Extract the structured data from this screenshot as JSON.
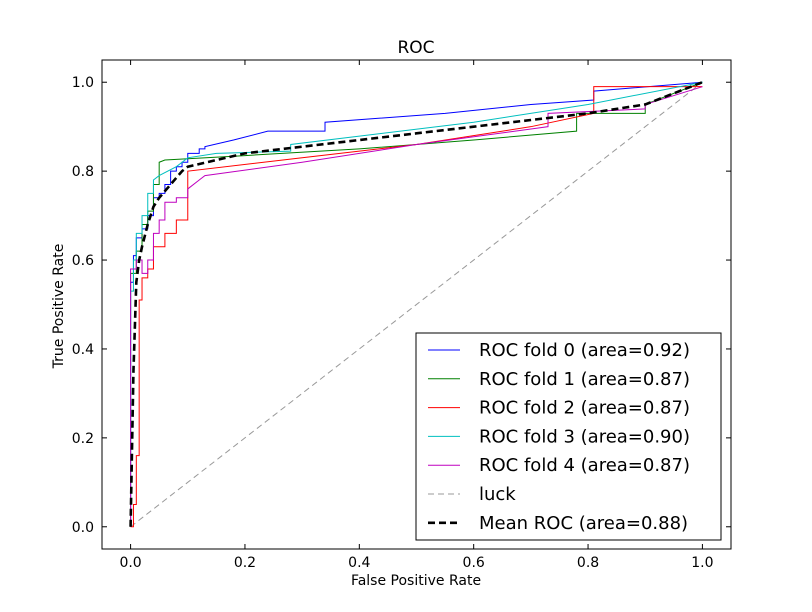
{
  "chart_data": {
    "type": "line",
    "title": "ROC",
    "xlabel": "False Positive Rate",
    "ylabel": "True Positive Rate",
    "xlim": [
      -0.05,
      1.05
    ],
    "ylim": [
      -0.05,
      1.05
    ],
    "xticks": [
      0.0,
      0.2,
      0.4,
      0.6,
      0.8,
      1.0
    ],
    "yticks": [
      0.0,
      0.2,
      0.4,
      0.6,
      0.8,
      1.0
    ],
    "xtick_labels": [
      "0.0",
      "0.2",
      "0.4",
      "0.6",
      "0.8",
      "1.0"
    ],
    "ytick_labels": [
      "0.0",
      "0.2",
      "0.4",
      "0.6",
      "0.8",
      "1.0"
    ],
    "grid": false,
    "legend_position": "lower-right",
    "series": [
      {
        "name": "ROC fold 0 (area=0.92)",
        "color": "#0000ff",
        "dash": "solid",
        "x": [
          0,
          0,
          0.005,
          0.005,
          0.01,
          0.01,
          0.02,
          0.02,
          0.03,
          0.03,
          0.04,
          0.04,
          0.05,
          0.05,
          0.06,
          0.06,
          0.07,
          0.07,
          0.08,
          0.08,
          0.09,
          0.09,
          0.1,
          0.1,
          0.12,
          0.12,
          0.13,
          0.13,
          0.18,
          0.24,
          0.34,
          0.34,
          0.55,
          0.7,
          0.81,
          0.81,
          1.0
        ],
        "y": [
          0,
          0.55,
          0.55,
          0.61,
          0.61,
          0.65,
          0.65,
          0.67,
          0.67,
          0.7,
          0.7,
          0.74,
          0.74,
          0.75,
          0.75,
          0.77,
          0.77,
          0.8,
          0.8,
          0.81,
          0.81,
          0.82,
          0.82,
          0.84,
          0.84,
          0.85,
          0.85,
          0.855,
          0.87,
          0.89,
          0.89,
          0.91,
          0.93,
          0.95,
          0.96,
          0.98,
          1.0
        ]
      },
      {
        "name": "ROC fold 1 (area=0.87)",
        "color": "#008000",
        "dash": "solid",
        "x": [
          0,
          0,
          0.01,
          0.01,
          0.02,
          0.02,
          0.03,
          0.03,
          0.04,
          0.04,
          0.05,
          0.05,
          0.06,
          0.2,
          0.4,
          0.6,
          0.78,
          0.78,
          0.9,
          0.9,
          1.0
        ],
        "y": [
          0,
          0.57,
          0.57,
          0.62,
          0.62,
          0.68,
          0.68,
          0.71,
          0.71,
          0.77,
          0.77,
          0.82,
          0.825,
          0.835,
          0.85,
          0.87,
          0.89,
          0.93,
          0.93,
          0.95,
          1.0
        ]
      },
      {
        "name": "ROC fold 2 (area=0.87)",
        "color": "#ff0000",
        "dash": "solid",
        "x": [
          0,
          0.005,
          0.005,
          0.01,
          0.01,
          0.015,
          0.015,
          0.02,
          0.02,
          0.03,
          0.03,
          0.04,
          0.04,
          0.06,
          0.06,
          0.08,
          0.08,
          0.1,
          0.1,
          0.3,
          0.5,
          0.7,
          0.81,
          0.81,
          1.0
        ],
        "y": [
          0,
          0,
          0.05,
          0.05,
          0.16,
          0.16,
          0.51,
          0.51,
          0.56,
          0.56,
          0.58,
          0.58,
          0.63,
          0.63,
          0.66,
          0.66,
          0.69,
          0.69,
          0.8,
          0.83,
          0.86,
          0.9,
          0.93,
          0.99,
          0.99
        ]
      },
      {
        "name": "ROC fold 3 (area=0.90)",
        "color": "#00bfbf",
        "dash": "solid",
        "x": [
          0,
          0,
          0.005,
          0.005,
          0.01,
          0.01,
          0.02,
          0.02,
          0.03,
          0.03,
          0.04,
          0.04,
          0.05,
          0.08,
          0.1,
          0.15,
          0.28,
          0.28,
          0.6,
          0.8,
          1.0
        ],
        "y": [
          0,
          0.53,
          0.53,
          0.6,
          0.6,
          0.66,
          0.66,
          0.7,
          0.7,
          0.75,
          0.75,
          0.78,
          0.79,
          0.81,
          0.83,
          0.84,
          0.845,
          0.86,
          0.91,
          0.95,
          1.0
        ]
      },
      {
        "name": "ROC fold 4 (area=0.87)",
        "color": "#bf00bf",
        "dash": "solid",
        "x": [
          0,
          0,
          0.01,
          0.01,
          0.02,
          0.02,
          0.03,
          0.03,
          0.04,
          0.04,
          0.05,
          0.05,
          0.06,
          0.06,
          0.08,
          0.08,
          0.1,
          0.1,
          0.12,
          0.13,
          0.3,
          0.5,
          0.73,
          0.73,
          0.9,
          0.9,
          1.0
        ],
        "y": [
          0,
          0.58,
          0.58,
          0.6,
          0.6,
          0.57,
          0.57,
          0.6,
          0.6,
          0.66,
          0.66,
          0.69,
          0.69,
          0.73,
          0.73,
          0.74,
          0.74,
          0.76,
          0.78,
          0.79,
          0.82,
          0.86,
          0.9,
          0.93,
          0.94,
          0.95,
          0.99
        ]
      },
      {
        "name": "luck",
        "color": "#999999",
        "dash": "dashed",
        "x": [
          0,
          1
        ],
        "y": [
          0,
          1
        ]
      },
      {
        "name": "Mean ROC (area=0.88)",
        "color": "#000000",
        "dash": "dashed-bold",
        "x": [
          0,
          0.005,
          0.01,
          0.015,
          0.02,
          0.03,
          0.04,
          0.05,
          0.06,
          0.07,
          0.08,
          0.09,
          0.1,
          0.15,
          0.2,
          0.3,
          0.4,
          0.5,
          0.6,
          0.7,
          0.8,
          0.9,
          1.0
        ],
        "y": [
          0,
          0.35,
          0.55,
          0.6,
          0.63,
          0.68,
          0.72,
          0.74,
          0.755,
          0.77,
          0.785,
          0.8,
          0.81,
          0.825,
          0.84,
          0.855,
          0.87,
          0.885,
          0.9,
          0.915,
          0.93,
          0.95,
          1.0
        ]
      }
    ]
  }
}
